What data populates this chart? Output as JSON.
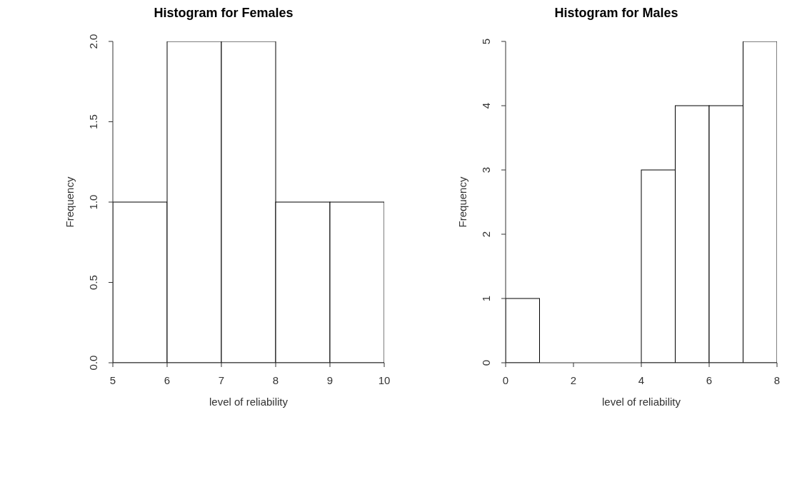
{
  "chart_data": [
    {
      "type": "histogram",
      "title": "Histogram for Females",
      "xlabel": "level of reliability",
      "ylabel": "Frequency",
      "bins": [
        5,
        6,
        7,
        8,
        9,
        10
      ],
      "values": [
        1,
        2,
        2,
        1,
        1
      ],
      "color": "#ffffff",
      "xlim": [
        5,
        10
      ],
      "xticks": [
        5,
        6,
        7,
        8,
        9,
        10
      ],
      "ylim": [
        0,
        2
      ],
      "yticks": [
        {
          "value": 0,
          "label": "0.0"
        },
        {
          "value": 0.5,
          "label": "0.5"
        },
        {
          "value": 1,
          "label": "1.0"
        },
        {
          "value": 1.5,
          "label": "1.5"
        },
        {
          "value": 2,
          "label": "2.0"
        }
      ],
      "grid": false
    },
    {
      "type": "histogram",
      "title": "Histogram for Males",
      "xlabel": "level of reliability",
      "ylabel": "Frequency",
      "bins": [
        0,
        1,
        2,
        3,
        4,
        5,
        6,
        7,
        8
      ],
      "values": [
        1,
        0,
        0,
        0,
        3,
        4,
        4,
        5
      ],
      "color": "#ffffff",
      "xlim": [
        0,
        8
      ],
      "xticks": [
        0,
        2,
        4,
        6,
        8
      ],
      "ylim": [
        0,
        5
      ],
      "yticks": [
        0,
        1,
        2,
        3,
        4,
        5
      ],
      "grid": false
    }
  ]
}
